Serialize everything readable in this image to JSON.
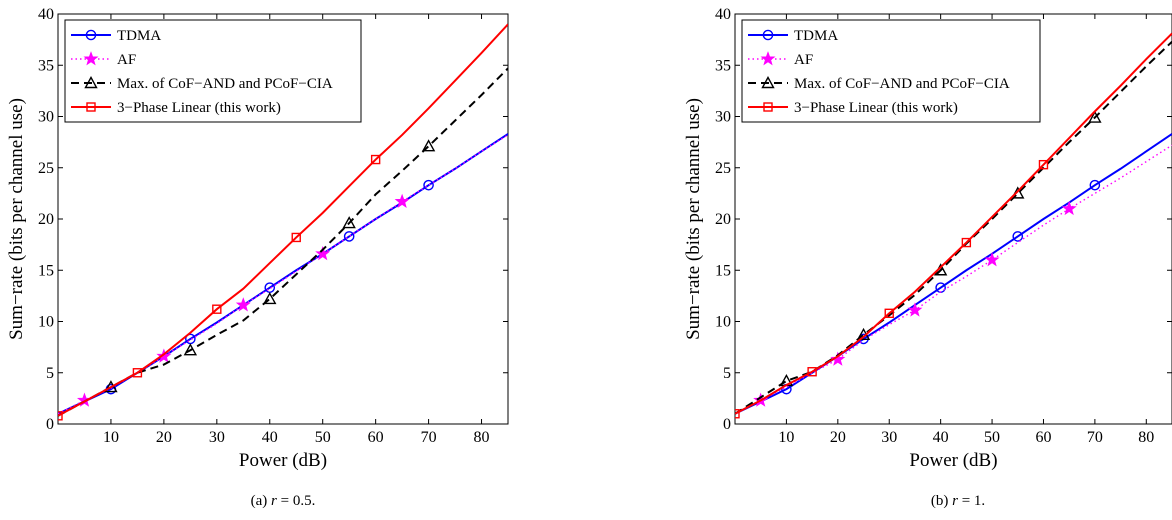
{
  "chart_data": [
    {
      "type": "line",
      "caption": "(a) r = 0.5.",
      "caption_prefix": "(a)",
      "caption_var": "r",
      "caption_rest": " = 0.5.",
      "xlabel": "Power (dB)",
      "ylabel": "Sum−rate (bits per channel use)",
      "xlim": [
        0,
        85
      ],
      "ylim": [
        0,
        40
      ],
      "xticks": [
        "10",
        "20",
        "30",
        "40",
        "50",
        "60",
        "70",
        "80"
      ],
      "yticks": [
        "0",
        "5",
        "10",
        "15",
        "20",
        "25",
        "30",
        "35",
        "40"
      ],
      "legend_position": "top-left",
      "grid": false,
      "series": [
        {
          "name": "TDMA",
          "color": "#0000ff",
          "dash": "solid",
          "marker": "circle",
          "x": [
            0,
            5,
            10,
            15,
            20,
            25,
            30,
            35,
            40,
            45,
            50,
            55,
            60,
            65,
            70,
            75,
            80,
            85
          ],
          "y": [
            1.0,
            2.2,
            3.4,
            5.0,
            6.6,
            8.3,
            9.9,
            11.6,
            13.3,
            15.0,
            16.6,
            18.3,
            20.0,
            21.6,
            23.3,
            24.9,
            26.6,
            28.3
          ],
          "markers_x": [
            10,
            25,
            40,
            55,
            70
          ],
          "markers_y": [
            3.4,
            8.3,
            13.3,
            18.3,
            23.3
          ]
        },
        {
          "name": "AF",
          "color": "#ff00ff",
          "dash": "dot",
          "marker": "star",
          "x": [
            0,
            5,
            10,
            15,
            20,
            25,
            30,
            35,
            40,
            45,
            50,
            55,
            60,
            65,
            70,
            75,
            80,
            85
          ],
          "y": [
            1.0,
            2.3,
            3.5,
            5.0,
            6.6,
            8.2,
            9.8,
            11.6,
            13.2,
            14.9,
            16.6,
            18.3,
            20.0,
            21.7,
            23.3,
            24.9,
            26.6,
            28.2
          ],
          "markers_x": [
            5,
            20,
            35,
            50,
            65
          ],
          "markers_y": [
            2.3,
            6.6,
            11.6,
            16.6,
            21.7
          ]
        },
        {
          "name": "Max. of CoF−AND and PCoF−CIA",
          "color": "#000000",
          "dash": "dash",
          "marker": "triangle",
          "x": [
            0,
            5,
            10,
            15,
            20,
            25,
            30,
            35,
            40,
            45,
            50,
            55,
            60,
            65,
            70,
            75,
            80,
            85
          ],
          "y": [
            0.8,
            2.2,
            3.6,
            5.0,
            5.8,
            7.2,
            8.7,
            10.1,
            12.2,
            14.6,
            17.0,
            19.6,
            22.4,
            24.7,
            27.1,
            29.6,
            32.1,
            34.7
          ],
          "markers_x": [
            10,
            25,
            40,
            55,
            70
          ],
          "markers_y": [
            3.6,
            7.2,
            12.2,
            19.6,
            27.1
          ]
        },
        {
          "name": "3−Phase Linear (this work)",
          "color": "#ff0000",
          "dash": "solid",
          "marker": "square",
          "x": [
            0,
            5,
            10,
            15,
            20,
            25,
            30,
            35,
            40,
            45,
            50,
            55,
            60,
            65,
            70,
            75,
            80,
            85
          ],
          "y": [
            0.8,
            2.2,
            3.6,
            5.0,
            6.8,
            8.9,
            11.2,
            13.2,
            15.7,
            18.2,
            20.6,
            23.2,
            25.8,
            28.2,
            30.8,
            33.5,
            36.2,
            39.0
          ],
          "markers_x": [
            0,
            15,
            30,
            45,
            60
          ],
          "markers_y": [
            0.8,
            5.0,
            11.2,
            18.2,
            25.8
          ]
        }
      ]
    },
    {
      "type": "line",
      "caption": "(b) r = 1.",
      "caption_prefix": "(b)",
      "caption_var": "r",
      "caption_rest": " = 1.",
      "xlabel": "Power (dB)",
      "ylabel": "Sum−rate (bits per channel use)",
      "xlim": [
        0,
        85
      ],
      "ylim": [
        0,
        40
      ],
      "xticks": [
        "10",
        "20",
        "30",
        "40",
        "50",
        "60",
        "70",
        "80"
      ],
      "yticks": [
        "0",
        "5",
        "10",
        "15",
        "20",
        "25",
        "30",
        "35",
        "40"
      ],
      "legend_position": "top-left",
      "grid": false,
      "series": [
        {
          "name": "TDMA",
          "color": "#0000ff",
          "dash": "solid",
          "marker": "circle",
          "x": [
            0,
            5,
            10,
            15,
            20,
            25,
            30,
            35,
            40,
            45,
            50,
            55,
            60,
            65,
            70,
            75,
            80,
            85
          ],
          "y": [
            1.0,
            2.2,
            3.4,
            5.0,
            6.6,
            8.3,
            9.9,
            11.6,
            13.3,
            15.0,
            16.6,
            18.3,
            20.0,
            21.6,
            23.3,
            24.9,
            26.6,
            28.3
          ],
          "markers_x": [
            10,
            25,
            40,
            55,
            70
          ],
          "markers_y": [
            3.4,
            8.3,
            13.3,
            18.3,
            23.3
          ]
        },
        {
          "name": "AF",
          "color": "#ff00ff",
          "dash": "dot",
          "marker": "star",
          "x": [
            0,
            5,
            10,
            15,
            20,
            25,
            30,
            35,
            40,
            45,
            50,
            55,
            60,
            65,
            70,
            75,
            80,
            85
          ],
          "y": [
            1.0,
            2.3,
            3.6,
            5.0,
            6.3,
            8.2,
            9.7,
            11.1,
            12.9,
            14.4,
            16.0,
            17.7,
            19.4,
            21.0,
            22.5,
            24.0,
            25.6,
            27.2
          ],
          "markers_x": [
            5,
            20,
            35,
            50,
            65
          ],
          "markers_y": [
            2.3,
            6.3,
            11.1,
            16.0,
            21.0
          ]
        },
        {
          "name": "Max. of CoF−AND and PCoF−CIA",
          "color": "#000000",
          "dash": "dash",
          "marker": "triangle",
          "x": [
            0,
            5,
            10,
            15,
            20,
            25,
            30,
            35,
            40,
            45,
            50,
            55,
            60,
            65,
            70,
            75,
            80,
            85
          ],
          "y": [
            1.0,
            2.6,
            4.2,
            5.1,
            6.7,
            8.7,
            10.6,
            12.6,
            15.0,
            17.6,
            20.0,
            22.5,
            25.0,
            27.5,
            29.9,
            32.4,
            34.9,
            37.3
          ],
          "markers_x": [
            10,
            25,
            40,
            55,
            70
          ],
          "markers_y": [
            4.2,
            8.7,
            15.0,
            22.5,
            29.9
          ]
        },
        {
          "name": "3−Phase Linear (this work)",
          "color": "#ff0000",
          "dash": "solid",
          "marker": "square",
          "x": [
            0,
            5,
            10,
            15,
            20,
            25,
            30,
            35,
            40,
            45,
            50,
            55,
            60,
            65,
            70,
            75,
            80,
            85
          ],
          "y": [
            1.0,
            2.3,
            3.8,
            5.1,
            6.6,
            8.5,
            10.8,
            12.9,
            15.3,
            17.7,
            20.2,
            22.7,
            25.3,
            27.9,
            30.5,
            33.0,
            35.6,
            38.1
          ],
          "markers_x": [
            0,
            15,
            30,
            45,
            60
          ],
          "markers_y": [
            1.0,
            5.1,
            10.8,
            17.7,
            25.3
          ]
        }
      ]
    }
  ]
}
